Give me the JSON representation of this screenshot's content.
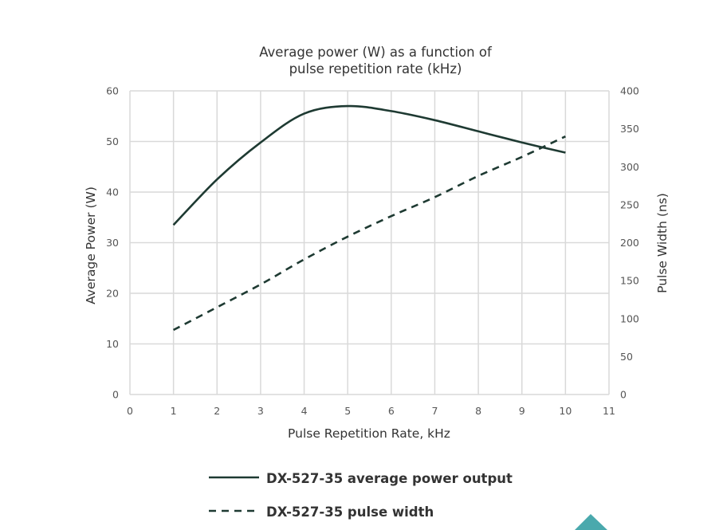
{
  "chart_data": {
    "type": "line",
    "title": [
      "Average power (W) as a function of",
      "pulse repetition rate (kHz)"
    ],
    "xlabel": "Pulse Repetition Rate, kHz",
    "ylabel": "Average Power (W)",
    "y2label": "Pulse Width (ns)",
    "xlim": [
      0,
      11
    ],
    "ylim": [
      0,
      60
    ],
    "y2lim": [
      0,
      400
    ],
    "x_ticks": [
      0,
      1,
      2,
      3,
      4,
      5,
      6,
      7,
      8,
      9,
      10,
      11
    ],
    "y_ticks": [
      0,
      10,
      20,
      30,
      40,
      50,
      60
    ],
    "y2_ticks": [
      0,
      50,
      100,
      150,
      200,
      250,
      300,
      350,
      400
    ],
    "grid": true,
    "legend_position": "bottom",
    "series": [
      {
        "name": "DX-527-35 average power output",
        "axis": "left",
        "style": "solid",
        "color": "#1e3a32",
        "x": [
          1,
          2,
          3,
          4,
          5,
          6,
          7,
          8,
          9,
          10
        ],
        "y": [
          33.5,
          42.5,
          49.8,
          55.5,
          57.0,
          56.0,
          54.2,
          52.0,
          49.8,
          47.8
        ]
      },
      {
        "name": "DX-527-35 pulse width",
        "axis": "right",
        "style": "dashed",
        "color": "#1e3a32",
        "x": [
          1,
          2,
          3,
          4,
          5,
          6,
          7,
          8,
          9,
          10
        ],
        "y": [
          85,
          115,
          145,
          178,
          208,
          235,
          260,
          288,
          313,
          340
        ]
      }
    ]
  },
  "decor": {
    "corner_triangle_color": "#4aa9ad"
  }
}
